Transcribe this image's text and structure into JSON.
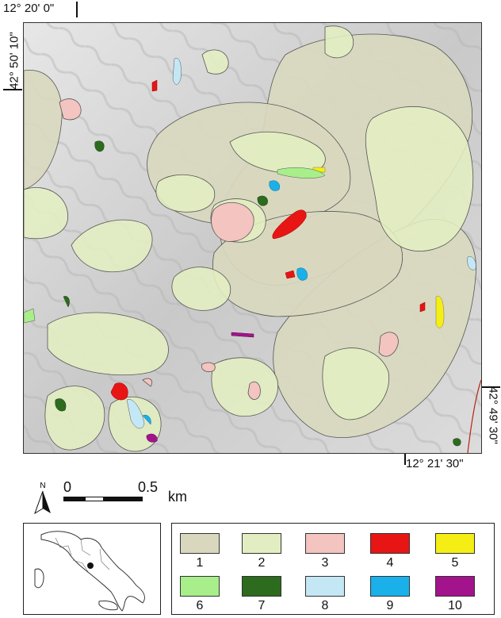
{
  "coordinates": {
    "top_left_lon": "12° 20' 0\"",
    "top_left_lat": "42° 50' 10\"",
    "bottom_right_lon": "12° 21' 30\"",
    "bottom_right_lat": "42° 49' 30\""
  },
  "north": "N",
  "scale": {
    "start": "0",
    "mid": "0.5",
    "unit": "km"
  },
  "legend": [
    {
      "label": "1",
      "color": "#d9d8bf"
    },
    {
      "label": "2",
      "color": "#e2eec1"
    },
    {
      "label": "3",
      "color": "#f3c4c0"
    },
    {
      "label": "4",
      "color": "#e81515"
    },
    {
      "label": "5",
      "color": "#f5ee14"
    },
    {
      "label": "6",
      "color": "#a8ee8a"
    },
    {
      "label": "7",
      "color": "#2d6b1e"
    },
    {
      "label": "8",
      "color": "#c4e7f5"
    },
    {
      "label": "9",
      "color": "#1ab1ea"
    },
    {
      "label": "10",
      "color": "#a3138c"
    }
  ]
}
